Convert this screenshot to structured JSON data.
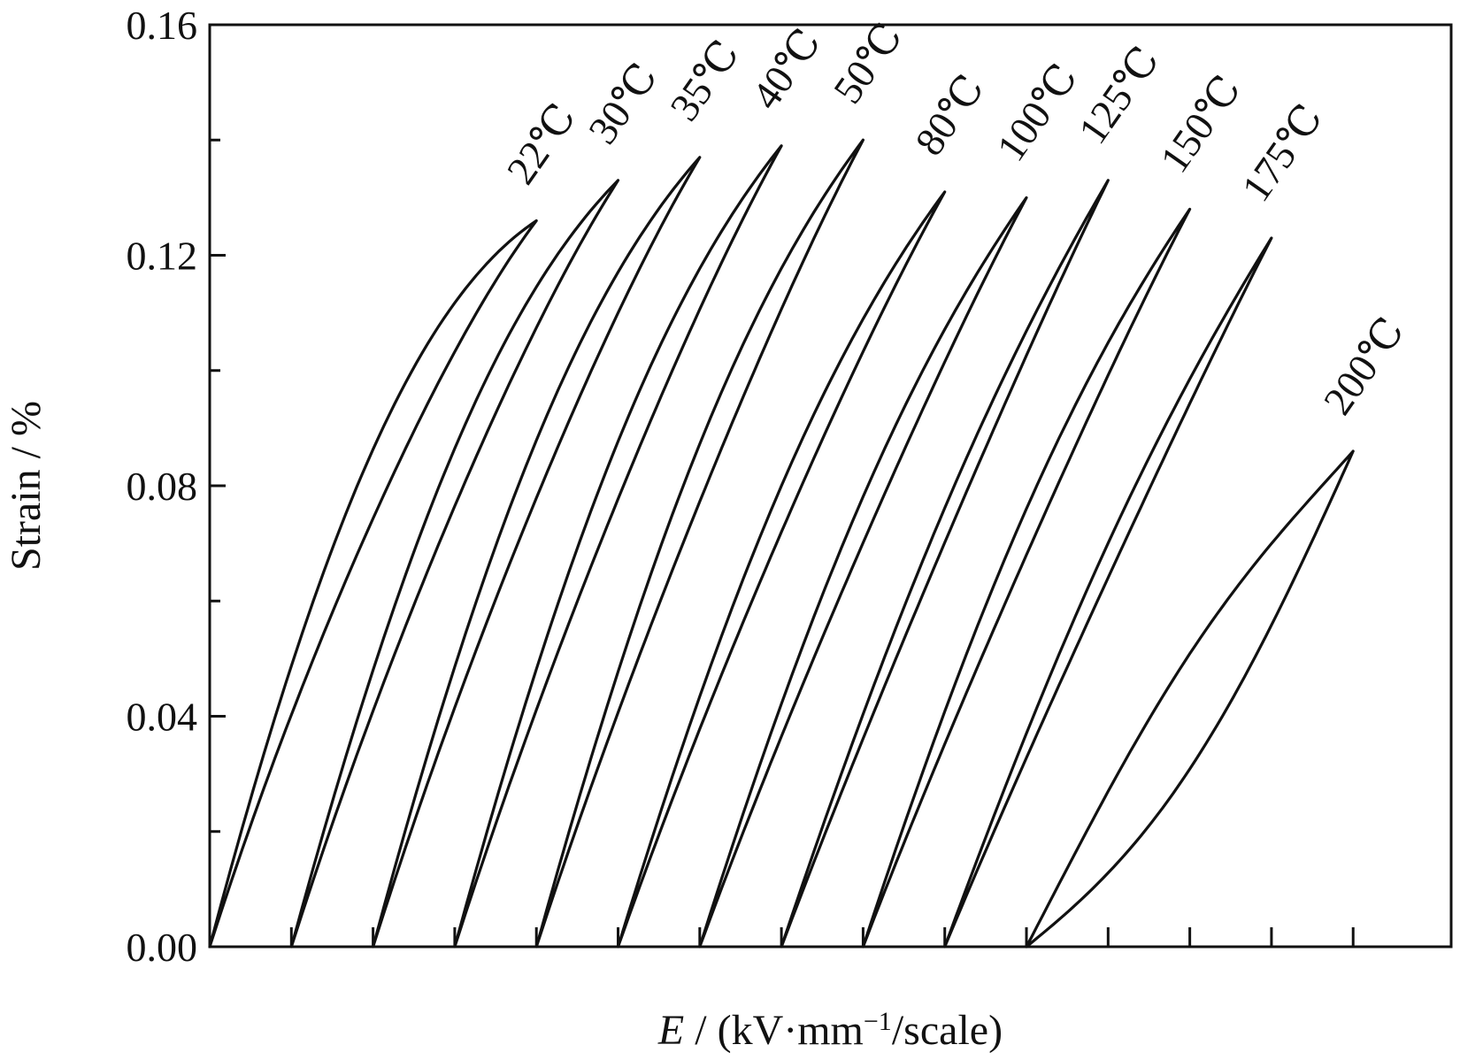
{
  "chart_data": {
    "type": "line",
    "title": "",
    "xlabel_italic": "E",
    "xlabel_rest": " / (kV·mm",
    "xlabel_sup": "−1",
    "xlabel_tail": "/scale)",
    "ylabel": "Strain / %",
    "ylim": [
      0,
      0.16
    ],
    "yticks": [
      "0.00",
      "0.04",
      "0.08",
      "0.12",
      "0.16"
    ],
    "grid": false,
    "legend": "none",
    "color": "#111111",
    "series": [
      {
        "name": "22℃",
        "x0": 0,
        "xmax": 4.0,
        "ymax": 0.126,
        "curv": 0.55,
        "w": 0.006
      },
      {
        "name": "30℃",
        "x0": 1,
        "xmax": 5.0,
        "ymax": 0.133,
        "curv": 0.45,
        "w": 0.005
      },
      {
        "name": "35℃",
        "x0": 2,
        "xmax": 6.0,
        "ymax": 0.137,
        "curv": 0.42,
        "w": 0.005
      },
      {
        "name": "40℃",
        "x0": 3,
        "xmax": 7.0,
        "ymax": 0.139,
        "curv": 0.38,
        "w": 0.005
      },
      {
        "name": "50℃",
        "x0": 4,
        "xmax": 8.0,
        "ymax": 0.14,
        "curv": 0.35,
        "w": 0.005
      },
      {
        "name": "80℃",
        "x0": 5,
        "xmax": 9.0,
        "ymax": 0.131,
        "curv": 0.32,
        "w": 0.004
      },
      {
        "name": "100℃",
        "x0": 6,
        "xmax": 10.0,
        "ymax": 0.13,
        "curv": 0.28,
        "w": 0.004
      },
      {
        "name": "125℃",
        "x0": 7,
        "xmax": 11.0,
        "ymax": 0.133,
        "curv": 0.2,
        "w": 0.003
      },
      {
        "name": "150℃",
        "x0": 8,
        "xmax": 12.0,
        "ymax": 0.128,
        "curv": 0.25,
        "w": 0.004
      },
      {
        "name": "175℃",
        "x0": 9,
        "xmax": 13.0,
        "ymax": 0.123,
        "curv": 0.18,
        "w": 0.003
      },
      {
        "name": "200℃",
        "x0": 10,
        "xmax": 14.0,
        "ymax": 0.086,
        "curv": -0.1,
        "w": 0.01
      }
    ]
  }
}
